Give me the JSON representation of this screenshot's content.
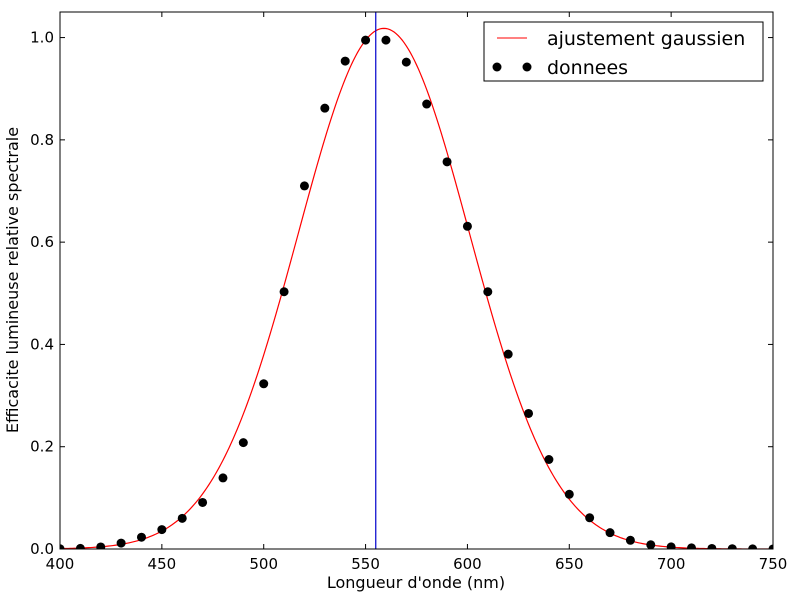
{
  "chart_data": {
    "type": "scatter",
    "title": "",
    "xlabel": "Longueur d'onde (nm)",
    "ylabel": "Efficacite lumineuse relative spectrale",
    "xlim": [
      400,
      750
    ],
    "ylim": [
      0,
      1.05
    ],
    "xticks": [
      400,
      450,
      500,
      550,
      600,
      650,
      700,
      750
    ],
    "yticks": [
      0.0,
      0.2,
      0.4,
      0.6,
      0.8,
      1.0
    ],
    "xtick_labels": [
      "400",
      "450",
      "500",
      "550",
      "600",
      "650",
      "700",
      "750"
    ],
    "ytick_labels": [
      "0.0",
      "0.2",
      "0.4",
      "0.6",
      "0.8",
      "1.0"
    ],
    "grid": false,
    "legend_position": "top-right",
    "vertical_line": {
      "x": 555,
      "color": "#0000cc"
    },
    "series": [
      {
        "name": "ajustement gaussien",
        "kind": "line",
        "color": "#ff0000",
        "model": {
          "amplitude": 1.018,
          "mean": 559,
          "sigma": 42
        }
      },
      {
        "name": "donnees",
        "kind": "points",
        "color": "#000000",
        "x": [
          400,
          410,
          420,
          430,
          440,
          450,
          460,
          470,
          480,
          490,
          500,
          510,
          520,
          530,
          540,
          550,
          560,
          570,
          580,
          590,
          600,
          610,
          620,
          630,
          640,
          650,
          660,
          670,
          680,
          690,
          700,
          710,
          720,
          730,
          740,
          750
        ],
        "y": [
          0.0004,
          0.0012,
          0.004,
          0.0116,
          0.023,
          0.038,
          0.06,
          0.091,
          0.139,
          0.208,
          0.323,
          0.503,
          0.71,
          0.862,
          0.954,
          0.995,
          0.995,
          0.952,
          0.87,
          0.757,
          0.631,
          0.503,
          0.381,
          0.265,
          0.175,
          0.107,
          0.061,
          0.032,
          0.017,
          0.0082,
          0.0041,
          0.0021,
          0.00105,
          0.00052,
          0.00025,
          0.00012
        ]
      }
    ]
  }
}
